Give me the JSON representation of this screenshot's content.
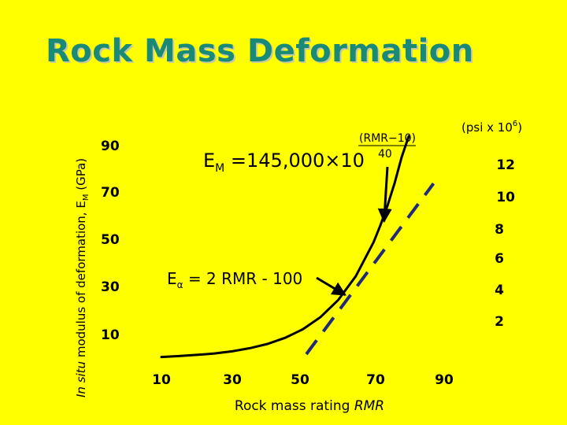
{
  "title": "Rock Mass Deformation",
  "chart_data": {
    "type": "line",
    "title": "Rock Mass Deformation",
    "xlabel": "Rock mass rating",
    "xlabel_symbol": "RMR",
    "ylabel_prefix": "In situ",
    "ylabel_main": "modulus of deformation, E",
    "ylabel_sub": "M",
    "ylabel_unit": "(GPa)",
    "y2label": "(psi x 10",
    "y2label_exp": "6",
    "y2label_close": ")",
    "x_ticks": [
      "10",
      "30",
      "50",
      "70",
      "90"
    ],
    "y_ticks": [
      "90",
      "70",
      "50",
      "30",
      "10"
    ],
    "y2_ticks": [
      "12",
      "10",
      "8",
      "6",
      "4",
      "2"
    ],
    "xlim": [
      10,
      90
    ],
    "ylim": [
      0,
      90
    ],
    "series": [
      {
        "style": "solid",
        "x": [
          10,
          15,
          20,
          25,
          30,
          35,
          40,
          45,
          50,
          55,
          60,
          65,
          70,
          72,
          74,
          76,
          78,
          80
        ],
        "y": [
          0.8,
          1.2,
          1.7,
          2.3,
          3.2,
          4.5,
          6.3,
          8.9,
          12.5,
          17.6,
          24.8,
          34.9,
          49.2,
          56.5,
          64.8,
          74.3,
          85.2,
          94.0
        ]
      },
      {
        "style": "dashed",
        "x": [
          51,
          60,
          70,
          80,
          87
        ],
        "y": [
          2,
          20,
          40,
          60,
          74
        ]
      }
    ],
    "annotations": [
      {
        "name": "formula-annotation",
        "E": "E",
        "E_sub": "M",
        "equals": "=",
        "coef": "145,000",
        "times": "×",
        "base": "10",
        "numerator": "(RMR−10)",
        "denominator": "40",
        "arrow_to": [
          73,
          58
        ]
      },
      {
        "name": "linear-annotation",
        "E": "E",
        "alpha": "α",
        "rest": "= 2 RMR - 100",
        "arrow_to": [
          62,
          27
        ]
      }
    ],
    "grid": false,
    "legend": "none"
  }
}
